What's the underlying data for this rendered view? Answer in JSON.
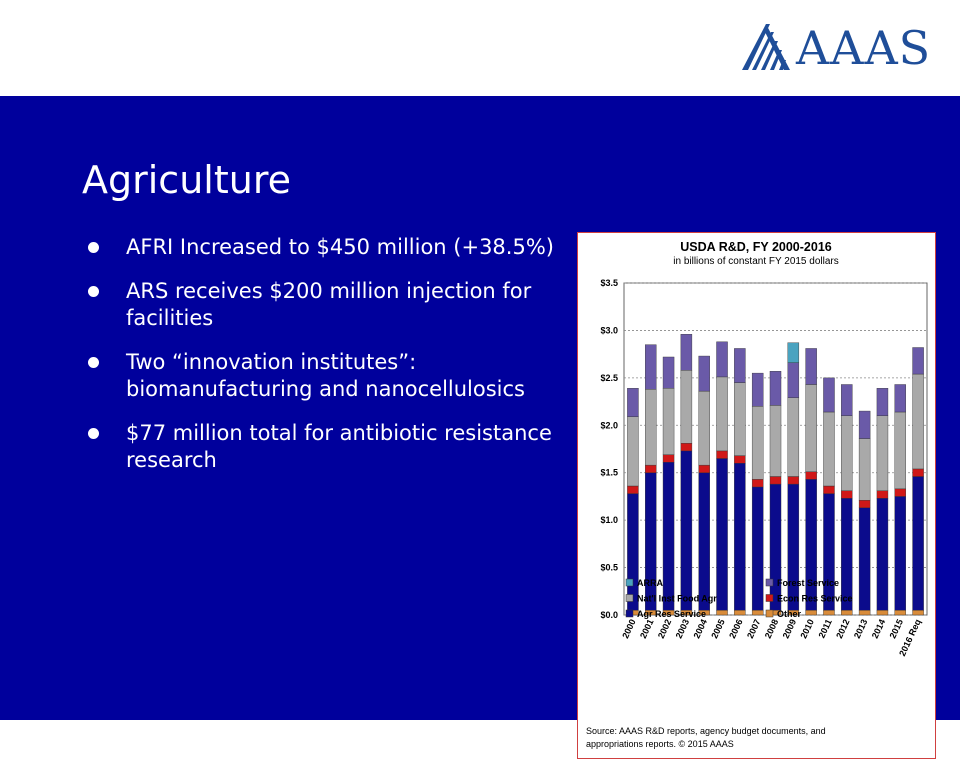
{
  "logo": {
    "text": "AAAS",
    "color": "#1f4e99"
  },
  "slide": {
    "title": "Agriculture",
    "bullets": [
      "AFRI Increased to $450 million (+38.5%)",
      "ARS receives $200 million injection for facilities",
      "Two “innovation institutes”: biomanufacturing and nanocellulosics",
      "$77 million total for antibiotic resistance research"
    ]
  },
  "chart_data": {
    "type": "bar",
    "stacked": true,
    "title": "USDA R&D, FY 2000-2016",
    "subtitle": "in billions of constant FY 2015 dollars",
    "ylim": [
      0,
      3.5
    ],
    "yticks": [
      "$0.0",
      "$0.5",
      "$1.0",
      "$1.5",
      "$2.0",
      "$2.5",
      "$3.0",
      "$3.5"
    ],
    "grid": true,
    "legend_position": "bottom",
    "categories": [
      "2000",
      "2001",
      "2002",
      "2003",
      "2004",
      "2005",
      "2006",
      "2007",
      "2008",
      "2009",
      "2010",
      "2011",
      "2012",
      "2013",
      "2014",
      "2015",
      "2016 Req"
    ],
    "series": [
      {
        "name": "Other",
        "color": "#d98c3a",
        "values": [
          0.05,
          0.05,
          0.05,
          0.05,
          0.05,
          0.05,
          0.05,
          0.05,
          0.05,
          0.05,
          0.05,
          0.05,
          0.05,
          0.05,
          0.05,
          0.05,
          0.05
        ]
      },
      {
        "name": "Agr Res Service",
        "color": "#0b0b8c",
        "values": [
          1.23,
          1.45,
          1.56,
          1.68,
          1.45,
          1.6,
          1.55,
          1.3,
          1.33,
          1.33,
          1.38,
          1.23,
          1.18,
          1.08,
          1.18,
          1.2,
          1.41
        ]
      },
      {
        "name": "Econ Res Service",
        "color": "#d01818",
        "values": [
          0.08,
          0.08,
          0.08,
          0.08,
          0.08,
          0.08,
          0.08,
          0.08,
          0.08,
          0.08,
          0.08,
          0.08,
          0.08,
          0.08,
          0.08,
          0.08,
          0.08
        ]
      },
      {
        "name": "Nat'l Inst Food Agr",
        "color": "#a9a9a9",
        "values": [
          0.73,
          0.8,
          0.7,
          0.77,
          0.78,
          0.78,
          0.77,
          0.77,
          0.75,
          0.83,
          0.92,
          0.78,
          0.79,
          0.65,
          0.79,
          0.81,
          1.0
        ]
      },
      {
        "name": "Forest Service",
        "color": "#6a5aa8",
        "values": [
          0.3,
          0.47,
          0.33,
          0.38,
          0.37,
          0.37,
          0.36,
          0.35,
          0.36,
          0.37,
          0.38,
          0.36,
          0.33,
          0.29,
          0.29,
          0.29,
          0.28
        ]
      },
      {
        "name": "ARRA",
        "color": "#4aa3c0",
        "values": [
          0,
          0,
          0,
          0,
          0,
          0,
          0,
          0,
          0,
          0.21,
          0,
          0,
          0,
          0,
          0,
          0,
          0
        ]
      }
    ],
    "legend": [
      "ARRA",
      "Forest Service",
      "Nat'l Inst Food Agr",
      "Econ Res Service",
      "Agr Res Service",
      "Other"
    ],
    "source": [
      "Source: AAAS R&D reports, agency budget documents, and",
      "appropriations reports. © 2015 AAAS"
    ]
  }
}
